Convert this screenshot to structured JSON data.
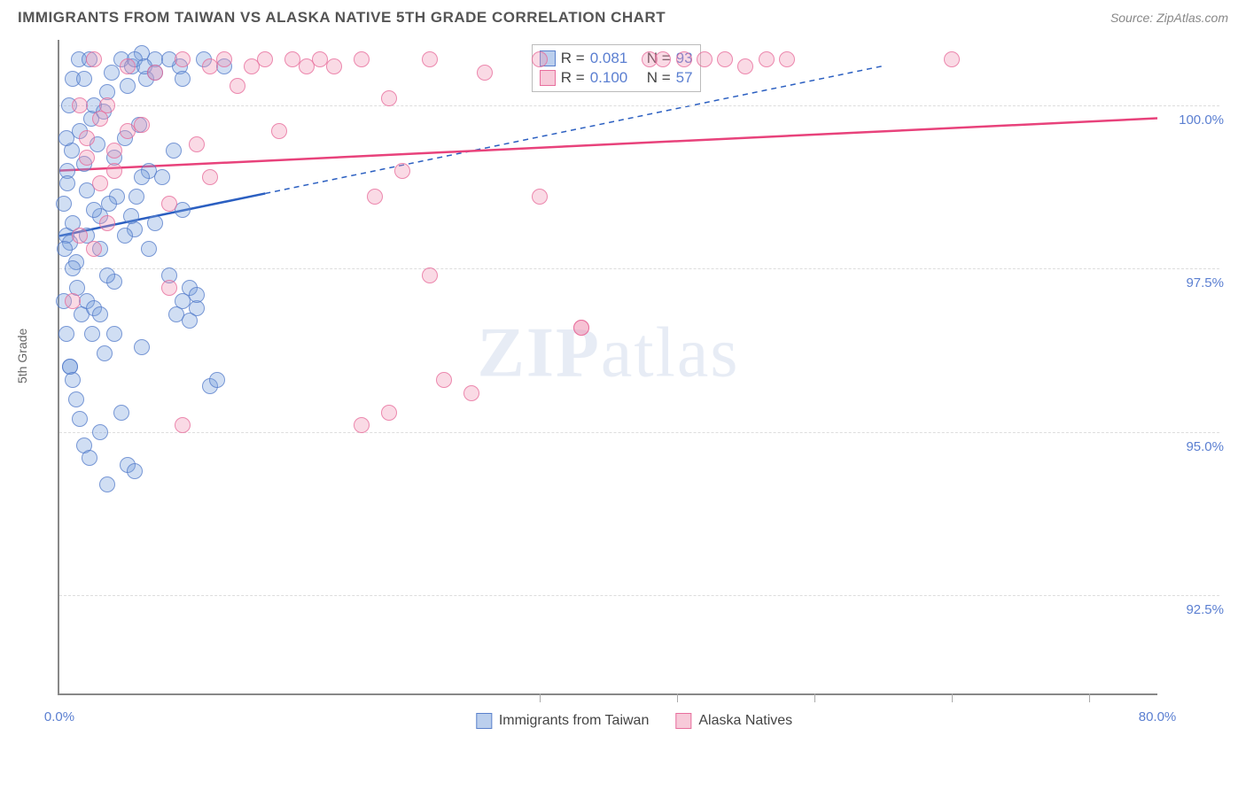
{
  "title": "IMMIGRANTS FROM TAIWAN VS ALASKA NATIVE 5TH GRADE CORRELATION CHART",
  "source": "Source: ZipAtlas.com",
  "y_axis_label": "5th Grade",
  "watermark_bold": "ZIP",
  "watermark_light": "atlas",
  "chart": {
    "type": "scatter",
    "background_color": "#ffffff",
    "grid_color": "#dddddd",
    "axis_color": "#888888",
    "x_domain": [
      0,
      80
    ],
    "y_domain": [
      91,
      101
    ],
    "x_ticks": [
      0,
      80
    ],
    "x_tick_labels": [
      "0.0%",
      "80.0%"
    ],
    "x_minor_ticks": [
      35,
      45,
      55,
      65,
      75
    ],
    "y_gridlines": [
      92.5,
      95.0,
      97.5,
      100.0
    ],
    "y_tick_labels": [
      "92.5%",
      "95.0%",
      "97.5%",
      "100.0%"
    ],
    "marker_size": 18,
    "series": [
      {
        "id": "blue",
        "name": "Immigrants from Taiwan",
        "fill": "rgba(120,160,220,0.35)",
        "stroke": "rgba(80,120,200,0.7)",
        "trend_color": "#2b5fc1",
        "trend_width": 2.5,
        "trend_start": [
          0,
          98.0
        ],
        "trend_solid_x": 15,
        "trend_end": [
          60,
          100.6
        ],
        "R": "0.081",
        "N": "93",
        "points": [
          [
            0.5,
            98.0
          ],
          [
            0.8,
            97.9
          ],
          [
            1.0,
            98.2
          ],
          [
            1.2,
            97.6
          ],
          [
            0.6,
            99.0
          ],
          [
            0.9,
            99.3
          ],
          [
            1.5,
            99.6
          ],
          [
            1.8,
            99.1
          ],
          [
            2.0,
            98.7
          ],
          [
            2.3,
            99.8
          ],
          [
            2.5,
            100.0
          ],
          [
            2.8,
            99.4
          ],
          [
            3.0,
            98.3
          ],
          [
            3.2,
            99.9
          ],
          [
            3.5,
            100.2
          ],
          [
            3.8,
            100.5
          ],
          [
            4.0,
            99.2
          ],
          [
            4.2,
            98.6
          ],
          [
            4.5,
            100.7
          ],
          [
            4.8,
            99.5
          ],
          [
            5.0,
            100.3
          ],
          [
            5.3,
            100.6
          ],
          [
            5.5,
            98.1
          ],
          [
            5.8,
            99.7
          ],
          [
            6.0,
            100.8
          ],
          [
            6.3,
            100.4
          ],
          [
            6.5,
            99.0
          ],
          [
            7.0,
            100.7
          ],
          [
            7.5,
            98.9
          ],
          [
            8.0,
            97.4
          ],
          [
            8.3,
            99.3
          ],
          [
            8.8,
            100.6
          ],
          [
            9.0,
            98.4
          ],
          [
            9.5,
            97.2
          ],
          [
            10.0,
            96.9
          ],
          [
            10.5,
            100.7
          ],
          [
            11.0,
            95.7
          ],
          [
            11.5,
            95.8
          ],
          [
            12.0,
            100.6
          ],
          [
            1.0,
            97.5
          ],
          [
            1.3,
            97.2
          ],
          [
            1.6,
            96.8
          ],
          [
            2.0,
            97.0
          ],
          [
            2.4,
            96.5
          ],
          [
            3.0,
            97.8
          ],
          [
            3.3,
            96.2
          ],
          [
            3.6,
            98.5
          ],
          [
            4.0,
            97.3
          ],
          [
            0.8,
            96.0
          ],
          [
            1.2,
            95.5
          ],
          [
            1.5,
            95.2
          ],
          [
            2.5,
            96.9
          ],
          [
            3.0,
            96.8
          ],
          [
            3.5,
            97.4
          ],
          [
            4.5,
            95.3
          ],
          [
            5.0,
            94.5
          ],
          [
            5.5,
            94.4
          ],
          [
            6.0,
            96.3
          ],
          [
            6.5,
            97.8
          ],
          [
            7.0,
            98.2
          ],
          [
            1.8,
            94.8
          ],
          [
            2.2,
            94.6
          ],
          [
            3.0,
            95.0
          ],
          [
            3.5,
            94.2
          ],
          [
            4.0,
            96.5
          ],
          [
            5.5,
            100.7
          ],
          [
            6.2,
            100.6
          ],
          [
            7.0,
            100.5
          ],
          [
            8.0,
            100.7
          ],
          [
            9.0,
            100.4
          ],
          [
            0.3,
            98.5
          ],
          [
            0.5,
            99.5
          ],
          [
            0.7,
            100.0
          ],
          [
            0.4,
            97.8
          ],
          [
            0.6,
            98.8
          ],
          [
            1.0,
            100.4
          ],
          [
            1.4,
            100.7
          ],
          [
            1.8,
            100.4
          ],
          [
            2.2,
            100.7
          ],
          [
            0.3,
            97.0
          ],
          [
            0.5,
            96.5
          ],
          [
            0.8,
            96.0
          ],
          [
            1.0,
            95.8
          ],
          [
            9.0,
            97.0
          ],
          [
            10.0,
            97.1
          ],
          [
            8.5,
            96.8
          ],
          [
            9.5,
            96.7
          ],
          [
            4.8,
            98.0
          ],
          [
            5.2,
            98.3
          ],
          [
            5.6,
            98.6
          ],
          [
            6.0,
            98.9
          ],
          [
            2.0,
            98.0
          ],
          [
            2.5,
            98.4
          ]
        ]
      },
      {
        "id": "pink",
        "name": "Alaska Natives",
        "fill": "rgba(240,150,180,0.35)",
        "stroke": "rgba(230,100,150,0.7)",
        "trend_color": "#e8427b",
        "trend_width": 2.5,
        "trend_start": [
          0,
          99.0
        ],
        "trend_end": [
          80,
          99.8
        ],
        "R": "0.100",
        "N": "57",
        "points": [
          [
            1.5,
            100.0
          ],
          [
            2.0,
            99.5
          ],
          [
            2.5,
            100.7
          ],
          [
            3.0,
            98.8
          ],
          [
            3.5,
            100.0
          ],
          [
            4.0,
            99.3
          ],
          [
            5.0,
            100.6
          ],
          [
            6.0,
            99.7
          ],
          [
            7.0,
            100.5
          ],
          [
            8.0,
            98.5
          ],
          [
            9.0,
            100.7
          ],
          [
            10.0,
            99.4
          ],
          [
            11.0,
            100.6
          ],
          [
            12.0,
            100.7
          ],
          [
            13.0,
            100.3
          ],
          [
            14.0,
            100.6
          ],
          [
            15.0,
            100.7
          ],
          [
            16.0,
            99.6
          ],
          [
            17.0,
            100.7
          ],
          [
            18.0,
            100.6
          ],
          [
            19.0,
            100.7
          ],
          [
            20.0,
            100.6
          ],
          [
            22.0,
            100.7
          ],
          [
            23.0,
            98.6
          ],
          [
            24.0,
            100.1
          ],
          [
            25.0,
            99.0
          ],
          [
            27.0,
            100.7
          ],
          [
            31.0,
            100.5
          ],
          [
            35.0,
            100.7
          ],
          [
            38.0,
            96.6
          ],
          [
            43.0,
            100.7
          ],
          [
            44.0,
            100.7
          ],
          [
            45.5,
            100.7
          ],
          [
            47.0,
            100.7
          ],
          [
            48.5,
            100.7
          ],
          [
            50.0,
            100.6
          ],
          [
            51.5,
            100.7
          ],
          [
            53.0,
            100.7
          ],
          [
            65.0,
            100.7
          ],
          [
            27.0,
            97.4
          ],
          [
            30.0,
            95.6
          ],
          [
            24.0,
            95.3
          ],
          [
            28.0,
            95.8
          ],
          [
            35.0,
            98.6
          ],
          [
            22.0,
            95.1
          ],
          [
            9.0,
            95.1
          ],
          [
            2.0,
            99.2
          ],
          [
            3.0,
            99.8
          ],
          [
            4.0,
            99.0
          ],
          [
            5.0,
            99.6
          ],
          [
            1.0,
            97.0
          ],
          [
            1.5,
            98.0
          ],
          [
            2.5,
            97.8
          ],
          [
            3.5,
            98.2
          ],
          [
            8.0,
            97.2
          ],
          [
            11.0,
            98.9
          ],
          [
            38.0,
            96.6
          ]
        ]
      }
    ]
  },
  "r_legend_prefix": "R = ",
  "n_legend_prefix": "N = ",
  "bottom_legend": [
    {
      "swatch": "blue",
      "label": "Immigrants from Taiwan"
    },
    {
      "swatch": "pink",
      "label": "Alaska Natives"
    }
  ]
}
